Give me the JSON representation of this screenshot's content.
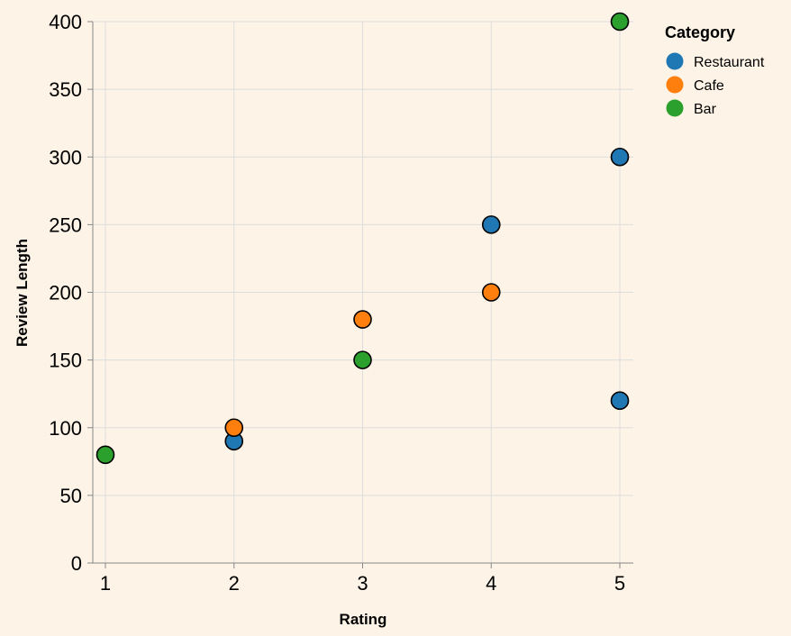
{
  "chart_data": {
    "type": "scatter",
    "xlabel": "Rating",
    "ylabel": "Review Length",
    "xlim": [
      1,
      5
    ],
    "ylim": [
      0,
      400
    ],
    "x_ticks": [
      "1",
      "2",
      "3",
      "4",
      "5"
    ],
    "y_ticks": [
      "0",
      "50",
      "100",
      "150",
      "200",
      "250",
      "300",
      "350",
      "400"
    ],
    "grid": true,
    "legend": {
      "title": "Category",
      "placement": "top-right"
    },
    "series": [
      {
        "name": "Restaurant",
        "color": "#1f77b4",
        "points": [
          {
            "x": 2,
            "y": 90
          },
          {
            "x": 4,
            "y": 250
          },
          {
            "x": 5,
            "y": 300
          },
          {
            "x": 5,
            "y": 120
          }
        ]
      },
      {
        "name": "Cafe",
        "color": "#ff7f0e",
        "points": [
          {
            "x": 2,
            "y": 100
          },
          {
            "x": 3,
            "y": 180
          },
          {
            "x": 4,
            "y": 200
          }
        ]
      },
      {
        "name": "Bar",
        "color": "#2ca02c",
        "points": [
          {
            "x": 1,
            "y": 80
          },
          {
            "x": 3,
            "y": 150
          },
          {
            "x": 5,
            "y": 400
          }
        ]
      }
    ]
  }
}
